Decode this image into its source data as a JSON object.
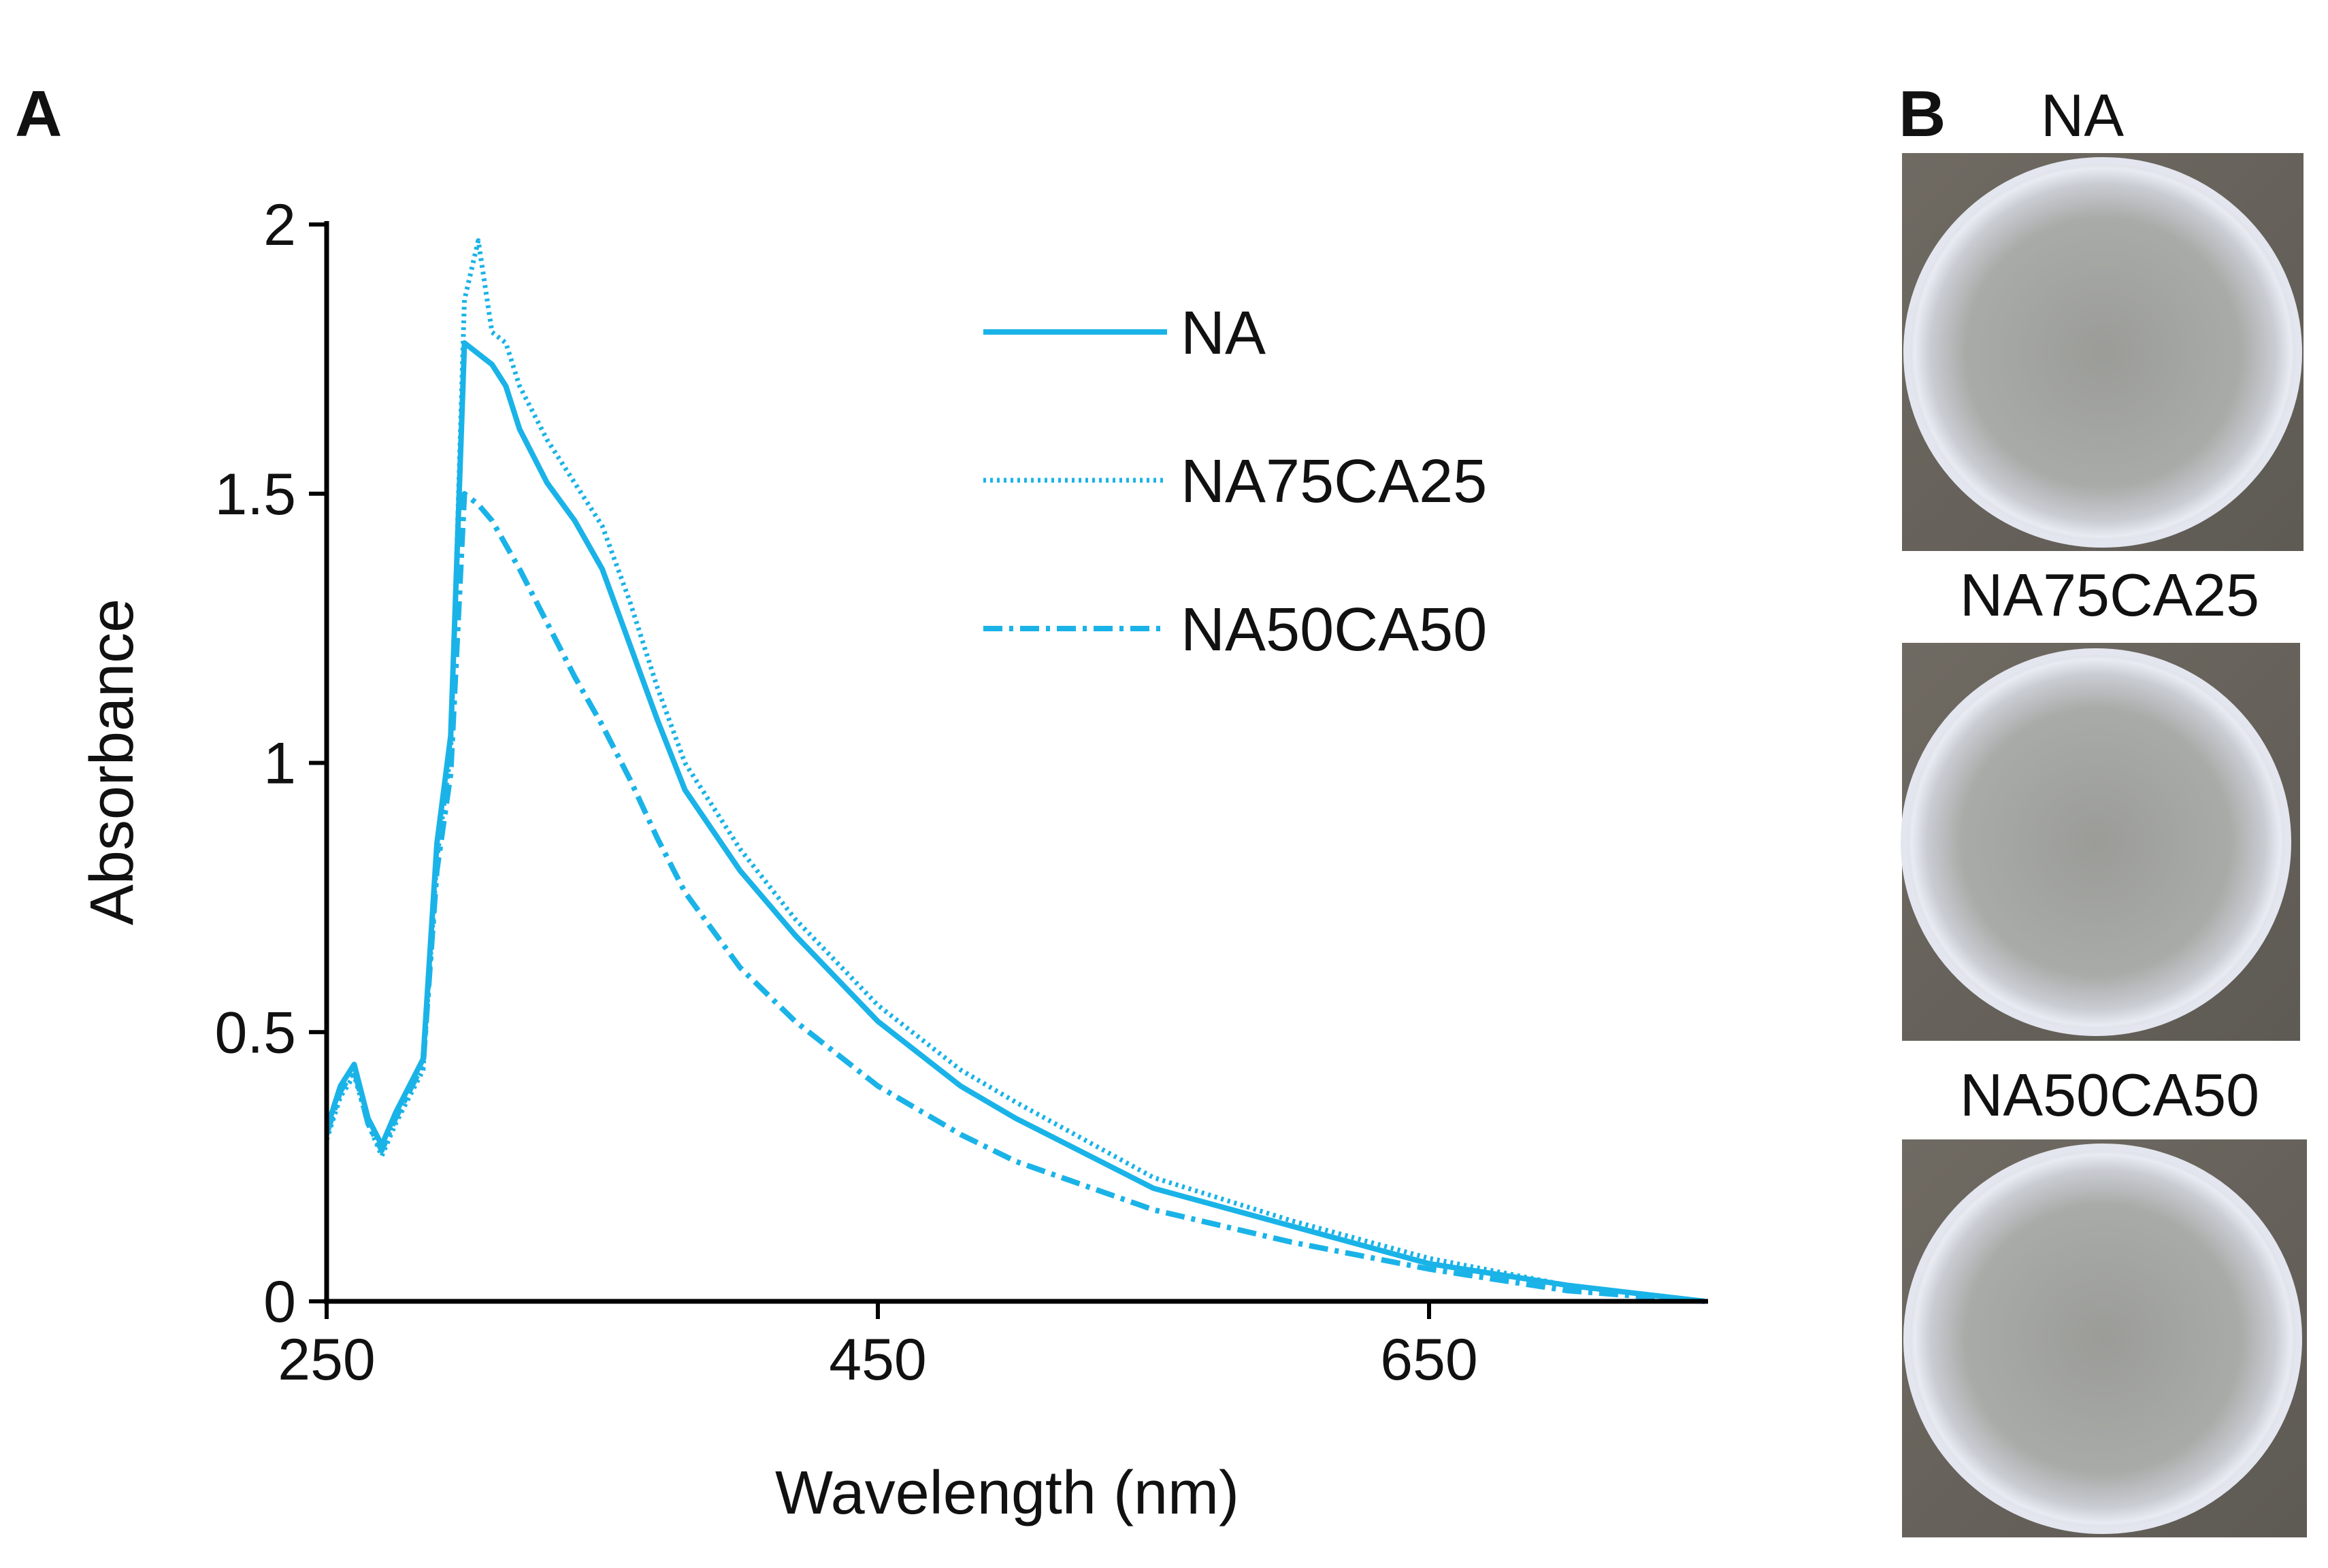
{
  "figure": {
    "panel_a_label": "A",
    "panel_b_label": "B",
    "colors": {
      "series": "#1ab3e8",
      "axis": "#000000",
      "text": "#111111"
    }
  },
  "chart_data": {
    "type": "line",
    "xlabel": "Wavelength (nm)",
    "ylabel": "Absorbance",
    "xlim": [
      250,
      750
    ],
    "ylim": [
      0,
      2
    ],
    "xticks": [
      250,
      450,
      650
    ],
    "yticks": [
      0,
      0.5,
      1,
      1.5,
      2
    ],
    "xtick_labels": [
      "250",
      "450",
      "650"
    ],
    "ytick_labels": [
      "0",
      "0.5",
      "1",
      "1.5",
      "2"
    ],
    "legend_position": "top-right",
    "series": [
      {
        "name": "NA",
        "style": "solid",
        "x": [
          250,
          255,
          260,
          265,
          270,
          275,
          280,
          285,
          290,
          295,
          300,
          305,
          310,
          315,
          320,
          330,
          340,
          350,
          360,
          370,
          380,
          400,
          420,
          450,
          480,
          500,
          550,
          600,
          650,
          700,
          750
        ],
        "y": [
          0.32,
          0.4,
          0.44,
          0.34,
          0.29,
          0.35,
          0.4,
          0.45,
          0.85,
          1.05,
          1.78,
          1.76,
          1.74,
          1.7,
          1.62,
          1.52,
          1.45,
          1.36,
          1.22,
          1.08,
          0.95,
          0.8,
          0.68,
          0.52,
          0.4,
          0.34,
          0.21,
          0.14,
          0.07,
          0.03,
          0.0
        ]
      },
      {
        "name": "NA75CA25",
        "style": "dotted",
        "x": [
          250,
          255,
          260,
          265,
          270,
          275,
          280,
          285,
          290,
          295,
          300,
          305,
          310,
          315,
          320,
          330,
          340,
          350,
          360,
          370,
          380,
          400,
          420,
          450,
          480,
          500,
          550,
          600,
          650,
          700,
          750
        ],
        "y": [
          0.3,
          0.38,
          0.42,
          0.33,
          0.27,
          0.33,
          0.38,
          0.43,
          0.82,
          1.02,
          1.86,
          1.97,
          1.8,
          1.78,
          1.7,
          1.6,
          1.52,
          1.44,
          1.3,
          1.14,
          1.0,
          0.84,
          0.71,
          0.55,
          0.43,
          0.37,
          0.23,
          0.15,
          0.08,
          0.03,
          0.0
        ]
      },
      {
        "name": "NA50CA50",
        "style": "dash-dot",
        "x": [
          250,
          255,
          260,
          265,
          270,
          275,
          280,
          285,
          290,
          295,
          300,
          305,
          310,
          320,
          330,
          340,
          350,
          360,
          370,
          380,
          400,
          420,
          450,
          480,
          500,
          550,
          600,
          650,
          700,
          750
        ],
        "y": [
          0.31,
          0.39,
          0.43,
          0.33,
          0.28,
          0.34,
          0.39,
          0.44,
          0.8,
          0.98,
          1.5,
          1.48,
          1.45,
          1.36,
          1.26,
          1.16,
          1.07,
          0.97,
          0.86,
          0.76,
          0.62,
          0.52,
          0.4,
          0.31,
          0.26,
          0.17,
          0.11,
          0.06,
          0.02,
          0.0
        ]
      }
    ]
  },
  "photos": {
    "items": [
      {
        "label": "NA"
      },
      {
        "label": "NA75CA25"
      },
      {
        "label": "NA50CA50"
      }
    ]
  }
}
